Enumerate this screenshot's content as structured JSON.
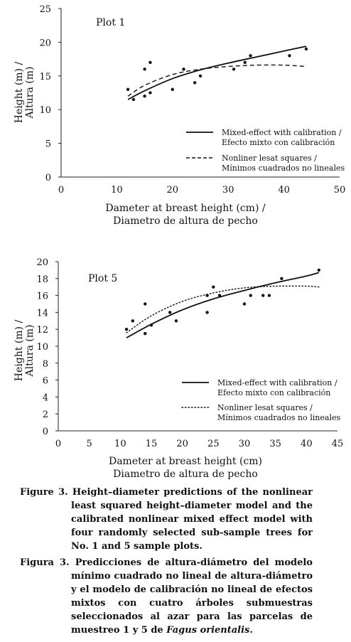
{
  "chart_data": [
    {
      "type": "scatter",
      "label": "Plot 1",
      "xlabel": [
        "Dameter at breast height (cm) /",
        "Diametro de altura de pecho"
      ],
      "ylabel": [
        "Height (m) /",
        "Altura (m)"
      ],
      "xlim": [
        0,
        50
      ],
      "ylim": [
        0,
        25
      ],
      "xticks": [
        0,
        10,
        20,
        30,
        40,
        50
      ],
      "yticks": [
        0,
        5,
        10,
        15,
        20,
        25
      ],
      "grid": false,
      "legend_position": "lower-right",
      "points": [
        [
          12,
          13
        ],
        [
          13,
          11.5
        ],
        [
          15,
          12
        ],
        [
          15,
          16
        ],
        [
          16,
          17
        ],
        [
          16,
          12.5
        ],
        [
          20,
          13
        ],
        [
          22,
          16
        ],
        [
          24,
          14
        ],
        [
          25,
          15
        ],
        [
          31,
          16
        ],
        [
          33,
          17
        ],
        [
          34,
          18
        ],
        [
          41,
          18
        ],
        [
          44,
          19
        ]
      ],
      "series": [
        {
          "name": [
            "Mixed-effect with calibration /",
            "Efecto mixto con calibración"
          ],
          "style": "solid",
          "x": [
            12,
            15,
            20,
            25,
            30,
            35,
            40,
            44
          ],
          "y": [
            11.5,
            12.8,
            14.6,
            15.9,
            16.9,
            17.8,
            18.7,
            19.4
          ]
        },
        {
          "name": [
            "Nonliner lesat squares /",
            "Mínimos cuadrados  no lineales"
          ],
          "style": "dashed",
          "x": [
            12,
            15,
            20,
            25,
            30,
            35,
            40,
            44
          ],
          "y": [
            12.0,
            13.6,
            15.2,
            16.0,
            16.4,
            16.6,
            16.6,
            16.4
          ]
        }
      ]
    },
    {
      "type": "scatter",
      "label": "Plot 5",
      "xlabel": [
        "Dameter at breast height (cm)",
        "Diametro de altura de pecho"
      ],
      "ylabel": [
        "Height (m) /",
        "Altura (m)"
      ],
      "xlim": [
        0,
        45
      ],
      "ylim": [
        0,
        20
      ],
      "xticks": [
        0,
        5,
        10,
        15,
        20,
        25,
        30,
        35,
        40,
        45
      ],
      "yticks": [
        0,
        2,
        4,
        6,
        8,
        10,
        12,
        14,
        16,
        18,
        20
      ],
      "grid": false,
      "legend_position": "lower-right",
      "points": [
        [
          11,
          12
        ],
        [
          12,
          13
        ],
        [
          14,
          15
        ],
        [
          14,
          11.5
        ],
        [
          15,
          12.5
        ],
        [
          18,
          14
        ],
        [
          19,
          13
        ],
        [
          24,
          16
        ],
        [
          24,
          14
        ],
        [
          25,
          17
        ],
        [
          26,
          16
        ],
        [
          30,
          15
        ],
        [
          31,
          16
        ],
        [
          33,
          16
        ],
        [
          34,
          16
        ],
        [
          36,
          18
        ],
        [
          42,
          19
        ]
      ],
      "series": [
        {
          "name": [
            "Mixed-effect with calibration /",
            "Efecto mixto con calibración"
          ],
          "style": "solid",
          "x": [
            11,
            15,
            20,
            25,
            30,
            35,
            40,
            42
          ],
          "y": [
            11.0,
            12.6,
            14.3,
            15.6,
            16.6,
            17.5,
            18.3,
            18.7
          ]
        },
        {
          "name": [
            "Nonliner lesat squares /",
            "Mínimos cuadrados  no lineales"
          ],
          "style": "dotted",
          "x": [
            11,
            15,
            20,
            25,
            30,
            35,
            40,
            42
          ],
          "y": [
            11.6,
            13.6,
            15.3,
            16.3,
            16.9,
            17.1,
            17.1,
            17.0
          ]
        }
      ]
    }
  ],
  "caption": {
    "en_prefix": "Figure 3.",
    "en_text": "Height–diameter predictions of the nonlinear least squared height–diameter model and the calibrated nonlinear mixed effect model with four randomly selected sub-sample trees for No. 1 and 5 sample plots.",
    "es_prefix": "Figura 3.",
    "es_text": "Predicciones de altura-diámetro del modelo mínimo cuadrado no lineal de altura-diámetro y el modelo de calibración no lineal de efectos mixtos con cuatro árboles submuestras seleccionados al azar para las parcelas de muestreo 1 y 5 de",
    "es_species": "Fagus orientalis",
    "es_end": "."
  }
}
